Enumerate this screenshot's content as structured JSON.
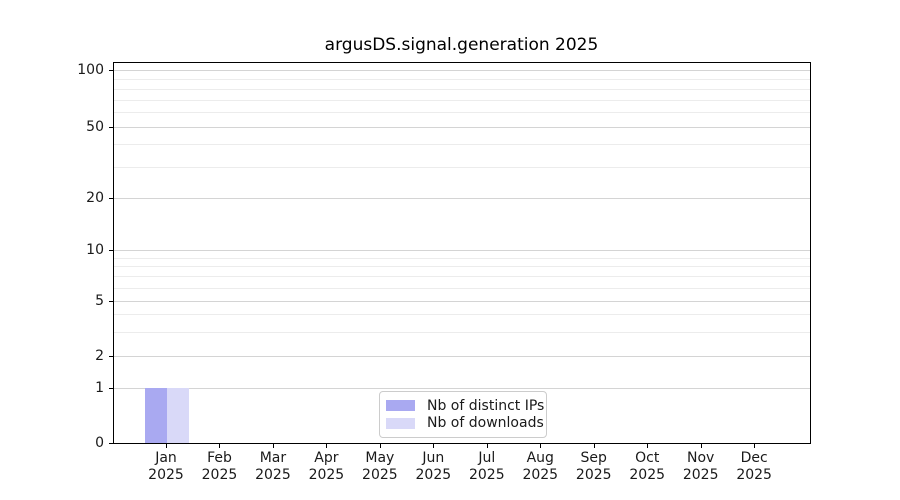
{
  "chart_data": {
    "type": "bar",
    "title": "argusDS.signal.generation 2025",
    "categories": [
      "Jan",
      "Feb",
      "Mar",
      "Apr",
      "May",
      "Jun",
      "Jul",
      "Aug",
      "Sep",
      "Oct",
      "Nov",
      "Dec"
    ],
    "x_year": "2025",
    "series": [
      {
        "name": "Nb of distinct IPs",
        "color": "#a9a9f1",
        "values": [
          1,
          0,
          0,
          0,
          0,
          0,
          0,
          0,
          0,
          0,
          0,
          0
        ]
      },
      {
        "name": "Nb of downloads",
        "color": "#d9d9f8",
        "values": [
          1,
          0,
          0,
          0,
          0,
          0,
          0,
          0,
          0,
          0,
          0,
          0
        ]
      }
    ],
    "y_axis": {
      "scale": "symlog",
      "major_ticks": [
        0,
        1,
        2,
        5,
        10,
        20,
        50,
        100
      ],
      "minor_ticks": [
        3,
        4,
        6,
        7,
        8,
        9,
        30,
        40,
        60,
        70,
        80,
        90
      ],
      "ylim": [
        0,
        110
      ]
    },
    "legend": {
      "position": "lower center"
    },
    "grid": true,
    "colors": {
      "major_grid": "#d4d4d4",
      "minor_grid": "#ececec",
      "axis": "#000000",
      "text": "#1a1a1a"
    }
  }
}
